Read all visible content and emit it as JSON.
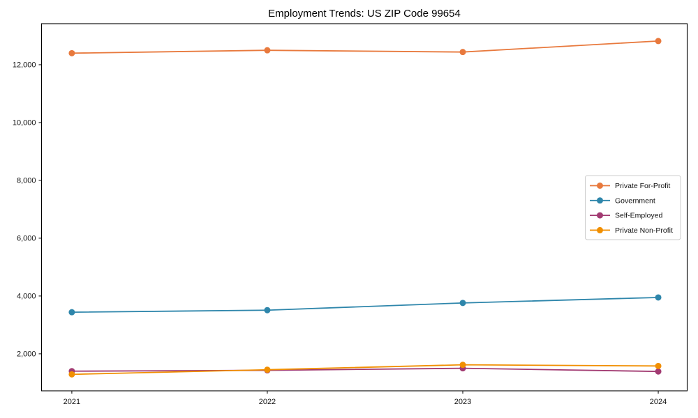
{
  "chart_data": {
    "type": "line",
    "title": "Employment Trends: US ZIP Code 99654",
    "xlabel": "",
    "ylabel": "",
    "x": [
      2021,
      2022,
      2023,
      2024
    ],
    "x_tick_labels": [
      "2021",
      "2022",
      "2023",
      "2024"
    ],
    "y_ticks": [
      2000,
      4000,
      6000,
      8000,
      10000,
      12000
    ],
    "y_tick_labels": [
      "2,000",
      "4,000",
      "6,000",
      "8,000",
      "10,000",
      "12,000"
    ],
    "xlim": [
      2020.845,
      2024.148
    ],
    "ylim": [
      720,
      13420
    ],
    "grid": false,
    "legend_position": "center right",
    "frame_color": "#000000",
    "background_color": "#ffffff",
    "legend_border_color": "#cccccc",
    "series": [
      {
        "name": "Private For-Profit",
        "color": "#E8793D",
        "values": [
          12400,
          12500,
          12440,
          12820
        ]
      },
      {
        "name": "Government",
        "color": "#2E86AB",
        "values": [
          3440,
          3510,
          3760,
          3950
        ]
      },
      {
        "name": "Self-Employed",
        "color": "#A23B72",
        "values": [
          1400,
          1430,
          1500,
          1390
        ]
      },
      {
        "name": "Private Non-Profit",
        "color": "#F18F01",
        "values": [
          1290,
          1450,
          1620,
          1580
        ]
      }
    ]
  }
}
